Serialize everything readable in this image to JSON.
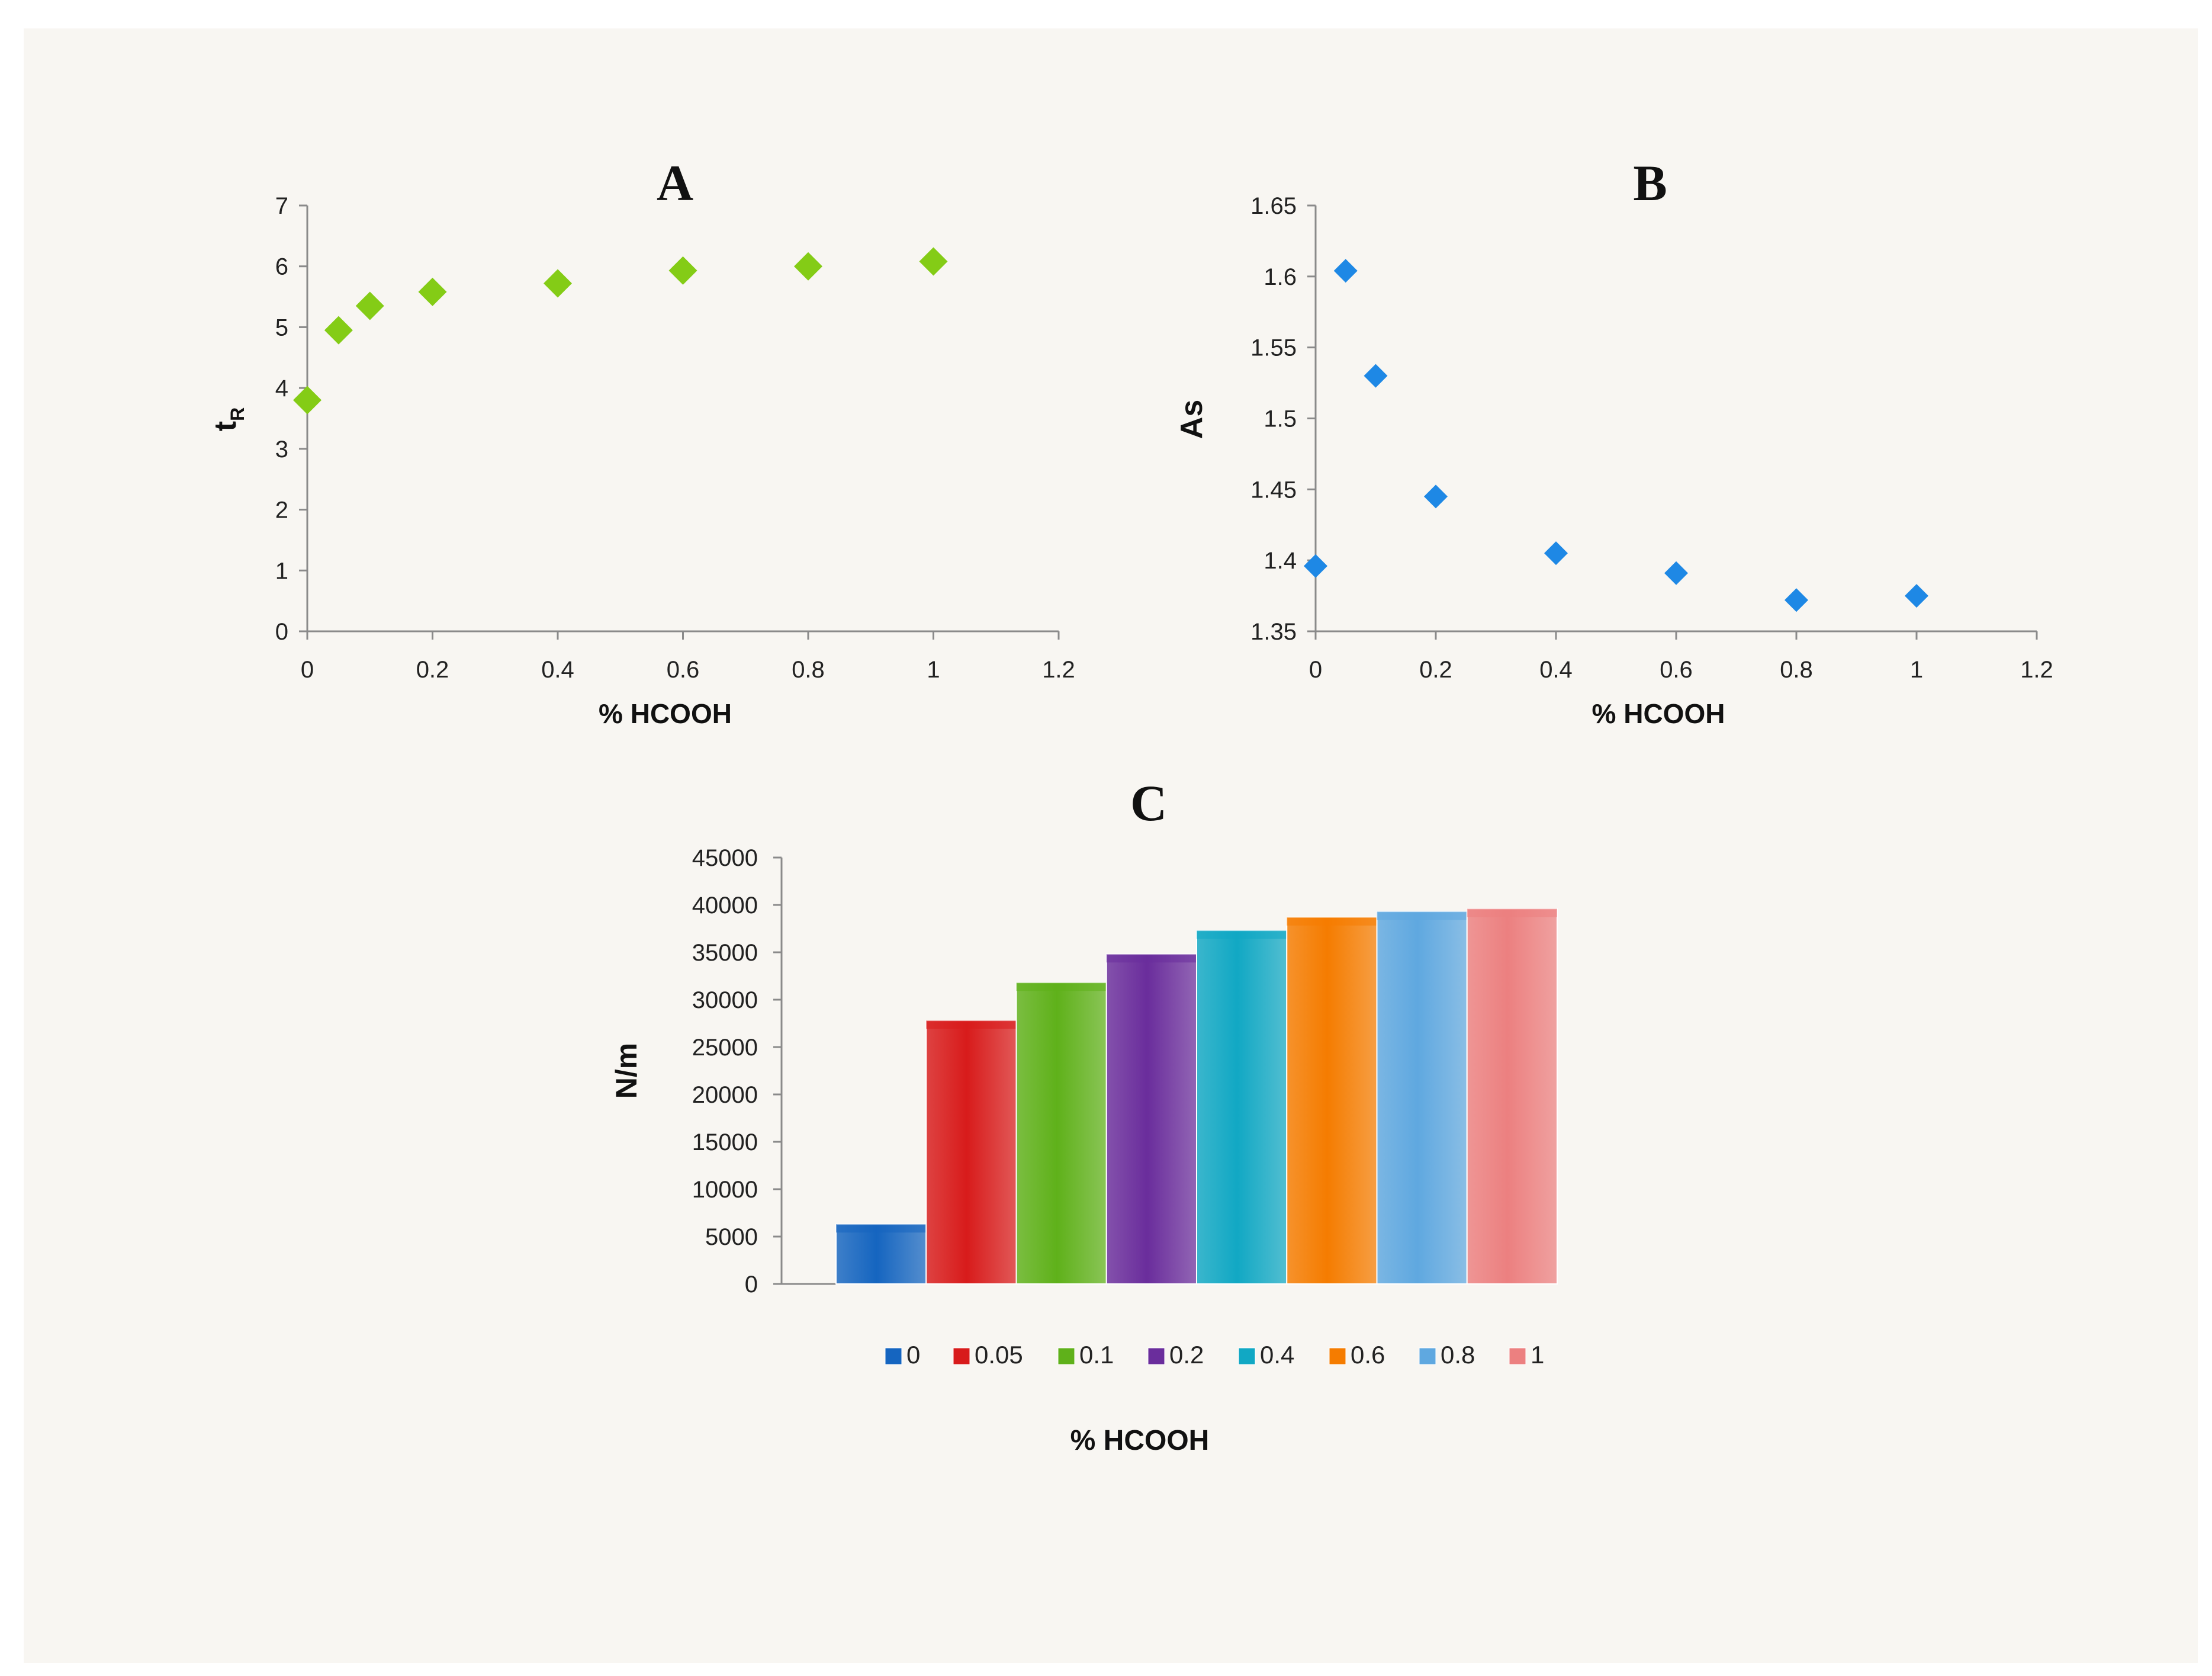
{
  "chart_data": [
    {
      "type": "scatter",
      "title": "A",
      "xlabel": "% HCOOH",
      "ylabel": "tR",
      "ylabel_main": "t",
      "ylabel_sub": "R",
      "xlim": [
        0,
        1.2
      ],
      "ylim": [
        0,
        7
      ],
      "xticks": [
        0,
        0.2,
        0.4,
        0.6,
        0.8,
        1,
        1.2
      ],
      "yticks": [
        0,
        1,
        2,
        3,
        4,
        5,
        6,
        7
      ],
      "grid": false,
      "marker_color": "#84cc16",
      "x": [
        0,
        0.05,
        0.1,
        0.2,
        0.4,
        0.6,
        0.8,
        1
      ],
      "y": [
        3.8,
        4.95,
        5.35,
        5.58,
        5.72,
        5.93,
        6.0,
        6.08
      ]
    },
    {
      "type": "scatter",
      "title": "B",
      "xlabel": "% HCOOH",
      "ylabel": "As",
      "xlim": [
        0,
        1.2
      ],
      "ylim": [
        1.35,
        1.65
      ],
      "xticks": [
        0,
        0.2,
        0.4,
        0.6,
        0.8,
        1,
        1.2
      ],
      "yticks": [
        1.35,
        1.4,
        1.45,
        1.5,
        1.55,
        1.6,
        1.65
      ],
      "grid": false,
      "marker_color": "#1e88e5",
      "x": [
        0,
        0.05,
        0.1,
        0.2,
        0.4,
        0.6,
        0.8,
        1
      ],
      "y": [
        1.396,
        1.604,
        1.53,
        1.445,
        1.405,
        1.391,
        1.372,
        1.375
      ]
    },
    {
      "type": "bar",
      "title": "C",
      "xlabel": "% HCOOH",
      "ylabel": "N/m",
      "ylim": [
        0,
        45000
      ],
      "yticks": [
        0,
        5000,
        10000,
        15000,
        20000,
        25000,
        30000,
        35000,
        40000,
        45000
      ],
      "grid": false,
      "legend": "bottom",
      "categories": [
        "0",
        "0.05",
        "0.1",
        "0.2",
        "0.4",
        "0.6",
        "0.8",
        "1"
      ],
      "values": [
        6300,
        27800,
        31800,
        34800,
        37300,
        38700,
        39300,
        39600
      ],
      "colors": [
        "#1565c0",
        "#d81b1b",
        "#5fb11a",
        "#6a2d9c",
        "#11a8c4",
        "#f57c00",
        "#5fa8e0",
        "#ec8080"
      ]
    }
  ]
}
